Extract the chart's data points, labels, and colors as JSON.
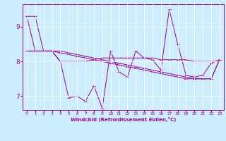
{
  "xlabel": "Windchill (Refroidissement éolien,°C)",
  "background_color": "#cceeff",
  "line_color": "#990099",
  "grid_color": "#ffffff",
  "yticks": [
    7,
    8,
    9
  ],
  "xticks": [
    0,
    1,
    2,
    3,
    4,
    5,
    6,
    7,
    8,
    9,
    10,
    11,
    12,
    13,
    14,
    15,
    16,
    17,
    18,
    19,
    20,
    21,
    22,
    23
  ],
  "ylim": [
    6.6,
    9.65
  ],
  "xlim": [
    -0.5,
    23.5
  ],
  "series1": [
    9.3,
    9.3,
    8.3,
    8.3,
    8.0,
    6.95,
    7.0,
    6.85,
    7.3,
    6.65,
    8.3,
    7.7,
    7.55,
    8.3,
    8.1,
    8.05,
    7.75,
    9.5,
    8.5,
    7.6,
    7.55,
    7.6,
    7.95,
    8.05
  ],
  "series2": [
    8.3,
    8.3,
    8.3,
    8.3,
    8.0,
    8.0,
    8.0,
    8.0,
    8.05,
    8.1,
    8.1,
    8.1,
    8.1,
    8.1,
    8.1,
    8.1,
    8.05,
    8.05,
    8.05,
    8.05,
    8.0,
    8.0,
    8.0,
    8.0
  ],
  "series3": [
    9.3,
    8.3,
    8.3,
    8.3,
    8.25,
    8.2,
    8.15,
    8.1,
    8.05,
    8.0,
    7.95,
    7.9,
    7.85,
    7.8,
    7.75,
    7.7,
    7.65,
    7.6,
    7.55,
    7.5,
    7.5,
    7.5,
    7.5,
    8.05
  ],
  "series4": [
    8.3,
    8.3,
    8.3,
    8.3,
    8.3,
    8.25,
    8.2,
    8.15,
    8.1,
    8.05,
    8.0,
    7.95,
    7.9,
    7.85,
    7.8,
    7.75,
    7.7,
    7.65,
    7.6,
    7.55,
    7.5,
    7.5,
    7.5,
    8.05
  ],
  "xlabel_fontsize": 5.0,
  "ytick_fontsize": 6.5,
  "xtick_fontsize": 4.2
}
